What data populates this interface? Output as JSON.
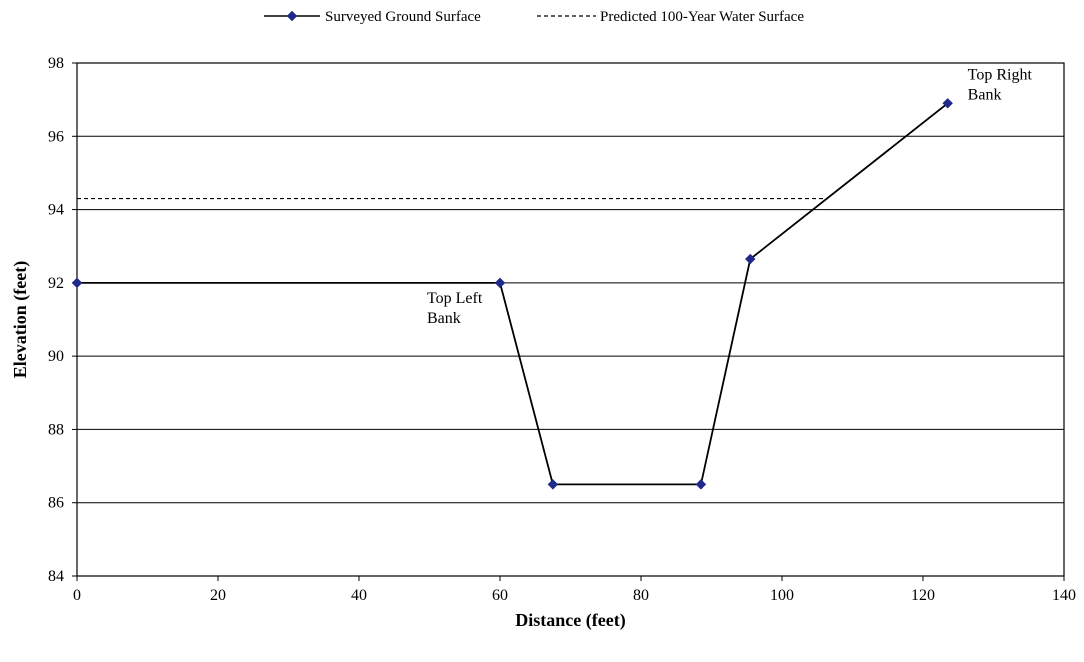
{
  "chart_data": {
    "type": "line",
    "title": "",
    "xlabel": "Distance (feet)",
    "ylabel": "Elevation (feet)",
    "xlim": [
      0,
      140
    ],
    "ylim": [
      84,
      98
    ],
    "x_ticks": [
      "0",
      "20",
      "40",
      "60",
      "80",
      "100",
      "120",
      "140"
    ],
    "y_ticks": [
      "84",
      "86",
      "88",
      "90",
      "92",
      "94",
      "96",
      "98"
    ],
    "grid": "horizontal",
    "legend_position": "top",
    "series": [
      {
        "name": "Surveyed Ground Surface",
        "style": "solid",
        "marker": "diamond",
        "color": "#000000",
        "marker_color": "#1f2a8a",
        "points": [
          {
            "x": 0,
            "y": 92.0
          },
          {
            "x": 60.0,
            "y": 92.0
          },
          {
            "x": 67.5,
            "y": 86.5
          },
          {
            "x": 88.5,
            "y": 86.5
          },
          {
            "x": 95.5,
            "y": 92.65
          },
          {
            "x": 123.5,
            "y": 96.9
          }
        ]
      },
      {
        "name": "Predicted 100-Year Water Surface",
        "style": "dashed",
        "color": "#000000",
        "points": [
          {
            "x": 0,
            "y": 94.3
          },
          {
            "x": 106.0,
            "y": 94.3
          }
        ]
      }
    ],
    "annotations": [
      {
        "lines": [
          "Top Left",
          "Bank"
        ],
        "x": 60.0,
        "y": 92.0
      },
      {
        "lines": [
          "Top Right",
          "Bank"
        ],
        "x": 123.5,
        "y": 96.9
      }
    ]
  }
}
